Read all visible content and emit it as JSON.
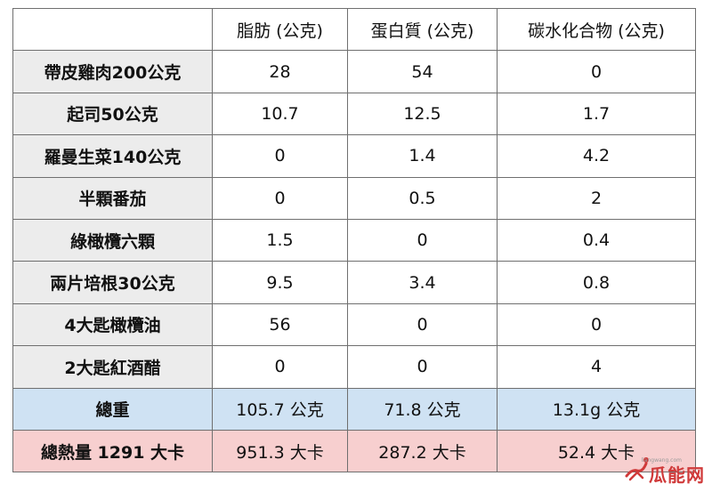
{
  "table": {
    "headers": [
      "",
      "脂肪 (公克)",
      "蛋白質 (公克)",
      "碳水化合物 (公克)"
    ],
    "rows": [
      {
        "label": "帶皮雞肉200公克",
        "fat": "28",
        "protein": "54",
        "carbs": "0"
      },
      {
        "label": "起司50公克",
        "fat": "10.7",
        "protein": "12.5",
        "carbs": "1.7"
      },
      {
        "label": "羅曼生菜140公克",
        "fat": "0",
        "protein": "1.4",
        "carbs": "4.2"
      },
      {
        "label": "半顆番茄",
        "fat": "0",
        "protein": "0.5",
        "carbs": "2"
      },
      {
        "label": "綠橄欖六顆",
        "fat": "1.5",
        "protein": "0",
        "carbs": "0.4"
      },
      {
        "label": "兩片培根30公克",
        "fat": "9.5",
        "protein": "3.4",
        "carbs": "0.8"
      },
      {
        "label": "4大匙橄欖油",
        "fat": "56",
        "protein": "0",
        "carbs": "0"
      },
      {
        "label": "2大匙紅酒醋",
        "fat": "0",
        "protein": "0",
        "carbs": "4"
      }
    ],
    "total": {
      "label": "總重",
      "fat": "105.7 公克",
      "protein": "71.8 公克",
      "carbs": "13.1g 公克"
    },
    "calories": {
      "label": "總熱量 1291 大卡",
      "fat": "951.3 大卡",
      "protein": "287.2 大卡",
      "carbs": "52.4 大卡"
    }
  },
  "colors": {
    "label_bg": "#ececec",
    "total_bg": "#cfe2f3",
    "calories_bg": "#f7cfcf",
    "border": "#6f6f6f"
  },
  "watermark": {
    "text": "瓜能网",
    "url": "liangwang.com"
  }
}
